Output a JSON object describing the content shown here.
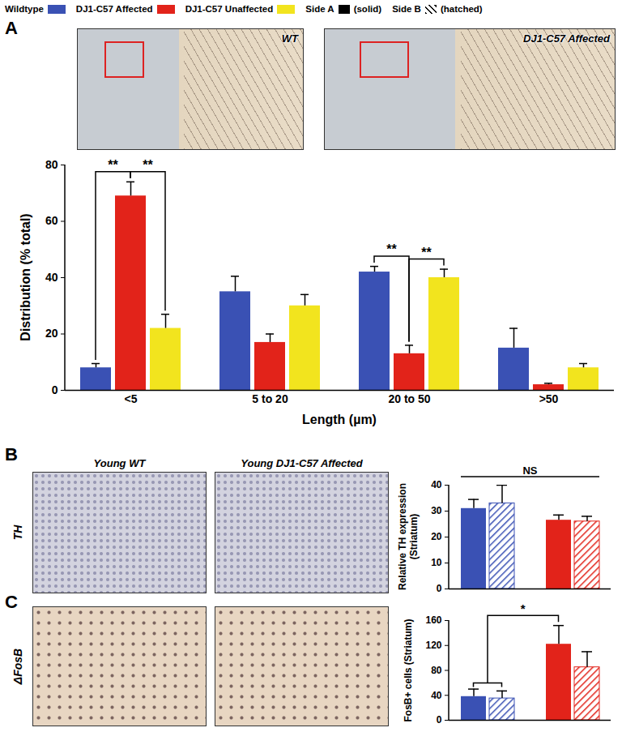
{
  "legend": {
    "sides": [
      {
        "name": "Side A",
        "label": "(solid)"
      },
      {
        "name": "Side B",
        "label": "(hatched)"
      }
    ]
  },
  "panels": [
    {
      "letter": "A",
      "images": [
        {
          "label": "WT"
        },
        {
          "label": "DJ1-C57 Affected"
        }
      ]
    },
    {
      "letter": "B",
      "row_label": "TH",
      "images": [
        {
          "label": "Young WT"
        },
        {
          "label": "Young DJ1-C57 Affected"
        }
      ]
    },
    {
      "letter": "C",
      "row_label": "ΔFosB"
    }
  ],
  "chart_data": [
    {
      "type": "bar",
      "categories": [
        "<5",
        "5 to 20",
        "20 to 50",
        ">50"
      ],
      "xlabel": "Length (µm)",
      "ylabel": "Distribution (% total)",
      "ylim": [
        0,
        80
      ],
      "yticks": [
        0,
        20,
        40,
        60,
        80
      ],
      "series": [
        {
          "name": "Wildtype",
          "color": "#3a51b4",
          "values": [
            8,
            35,
            42,
            15
          ],
          "errors": [
            1.5,
            5.5,
            2,
            7
          ]
        },
        {
          "name": "DJ1-C57 Affected",
          "color": "#e2231a",
          "values": [
            69,
            17,
            13,
            2
          ],
          "errors": [
            5,
            3,
            3,
            0.5
          ]
        },
        {
          "name": "DJ1-C57 Unaffected",
          "color": "#f2e41e",
          "values": [
            22,
            30,
            40,
            8
          ],
          "errors": [
            5,
            4,
            3,
            1.5
          ]
        }
      ],
      "annotations": [
        {
          "text": "**",
          "from": [
            [
              "<5",
              "Wildtype"
            ]
          ],
          "to": [
            [
              "<5",
              "DJ1-C57 Affected"
            ]
          ]
        },
        {
          "text": "**",
          "from": [
            [
              "<5",
              "DJ1-C57 Affected"
            ]
          ],
          "to": [
            [
              "<5",
              "DJ1-C57 Unaffected"
            ]
          ]
        },
        {
          "text": "**",
          "from": [
            [
              "20 to 50",
              "Wildtype"
            ]
          ],
          "to": [
            [
              "20 to 50",
              "DJ1-C57 Affected"
            ]
          ]
        },
        {
          "text": "**",
          "from": [
            [
              "20 to 50",
              "DJ1-C57 Affected"
            ]
          ],
          "to": [
            [
              "20 to 50",
              "DJ1-C57 Unaffected"
            ]
          ]
        }
      ]
    },
    {
      "type": "bar",
      "categories": [
        "Side A",
        "Side B"
      ],
      "tick_labels": "y",
      "ylabel": "Relative TH expression (Striatum)",
      "ylim": [
        0,
        40
      ],
      "yticks": [
        0,
        10,
        20,
        30,
        40
      ],
      "series": [
        {
          "name": "Wildtype",
          "color": "#3a51b4",
          "values": [
            31,
            33
          ],
          "errors": [
            3.5,
            7
          ]
        },
        {
          "name": "DJ1-C57 Affected",
          "color": "#e2231a",
          "values": [
            26.5,
            26
          ],
          "errors": [
            2,
            2
          ]
        }
      ],
      "annotations": [
        {
          "text": "NS",
          "from": [
            [
              "Side A",
              "Wildtype"
            ],
            [
              "Side B",
              "Wildtype"
            ],
            [
              "Side A",
              "DJ1-C57 Affected"
            ],
            [
              "Side B",
              "DJ1-C57 Affected"
            ]
          ]
        }
      ]
    },
    {
      "type": "bar",
      "categories": [
        "Side A",
        "Side B"
      ],
      "tick_labels": "y",
      "ylabel": "FosB+ cells (Striatum)",
      "ylim": [
        0,
        160
      ],
      "yticks": [
        0,
        40,
        80,
        120,
        160
      ],
      "series": [
        {
          "name": "Wildtype",
          "color": "#3a51b4",
          "values": [
            38,
            35
          ],
          "errors": [
            12,
            12
          ]
        },
        {
          "name": "DJ1-C57 Affected",
          "color": "#e2231a",
          "values": [
            122,
            85
          ],
          "errors": [
            30,
            25
          ]
        }
      ],
      "annotations": [
        {
          "text": "*",
          "from": [
            [
              "Side A",
              "Wildtype"
            ],
            [
              "Side B",
              "Wildtype"
            ]
          ],
          "to": [
            [
              "Side A",
              "DJ1-C57 Affected"
            ]
          ]
        }
      ]
    }
  ]
}
